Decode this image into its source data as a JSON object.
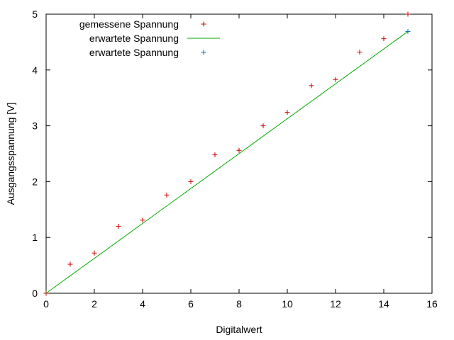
{
  "chart_data": {
    "type": "scatter",
    "title": "",
    "xlabel": "Digitalwert",
    "ylabel": "Ausgangsspannung [V]",
    "xlim": [
      0,
      16
    ],
    "ylim": [
      0,
      5
    ],
    "x_ticks": [
      0,
      2,
      4,
      6,
      8,
      10,
      12,
      14,
      16
    ],
    "y_ticks": [
      0,
      1,
      2,
      3,
      4,
      5
    ],
    "grid": false,
    "legend_position": "top-left",
    "series": [
      {
        "name": "gemessene Spannung",
        "kind": "points",
        "marker": "plus",
        "color": "#cc0000",
        "x": [
          0,
          1,
          2,
          3,
          4,
          5,
          6,
          7,
          8,
          9,
          10,
          11,
          12,
          13,
          14,
          15
        ],
        "y": [
          0,
          0.52,
          0.72,
          1.2,
          1.31,
          1.76,
          2.0,
          2.48,
          2.56,
          3.0,
          3.24,
          3.72,
          3.83,
          4.32,
          4.56,
          5.0
        ]
      },
      {
        "name": "erwartete Spannung",
        "kind": "line",
        "color": "#00aa00",
        "x": [
          0,
          15
        ],
        "y": [
          0,
          4.69
        ]
      },
      {
        "name": "erwartete Spannung",
        "kind": "points",
        "marker": "plus",
        "color": "#0070c0",
        "x": [
          15
        ],
        "y": [
          4.69
        ]
      }
    ]
  }
}
